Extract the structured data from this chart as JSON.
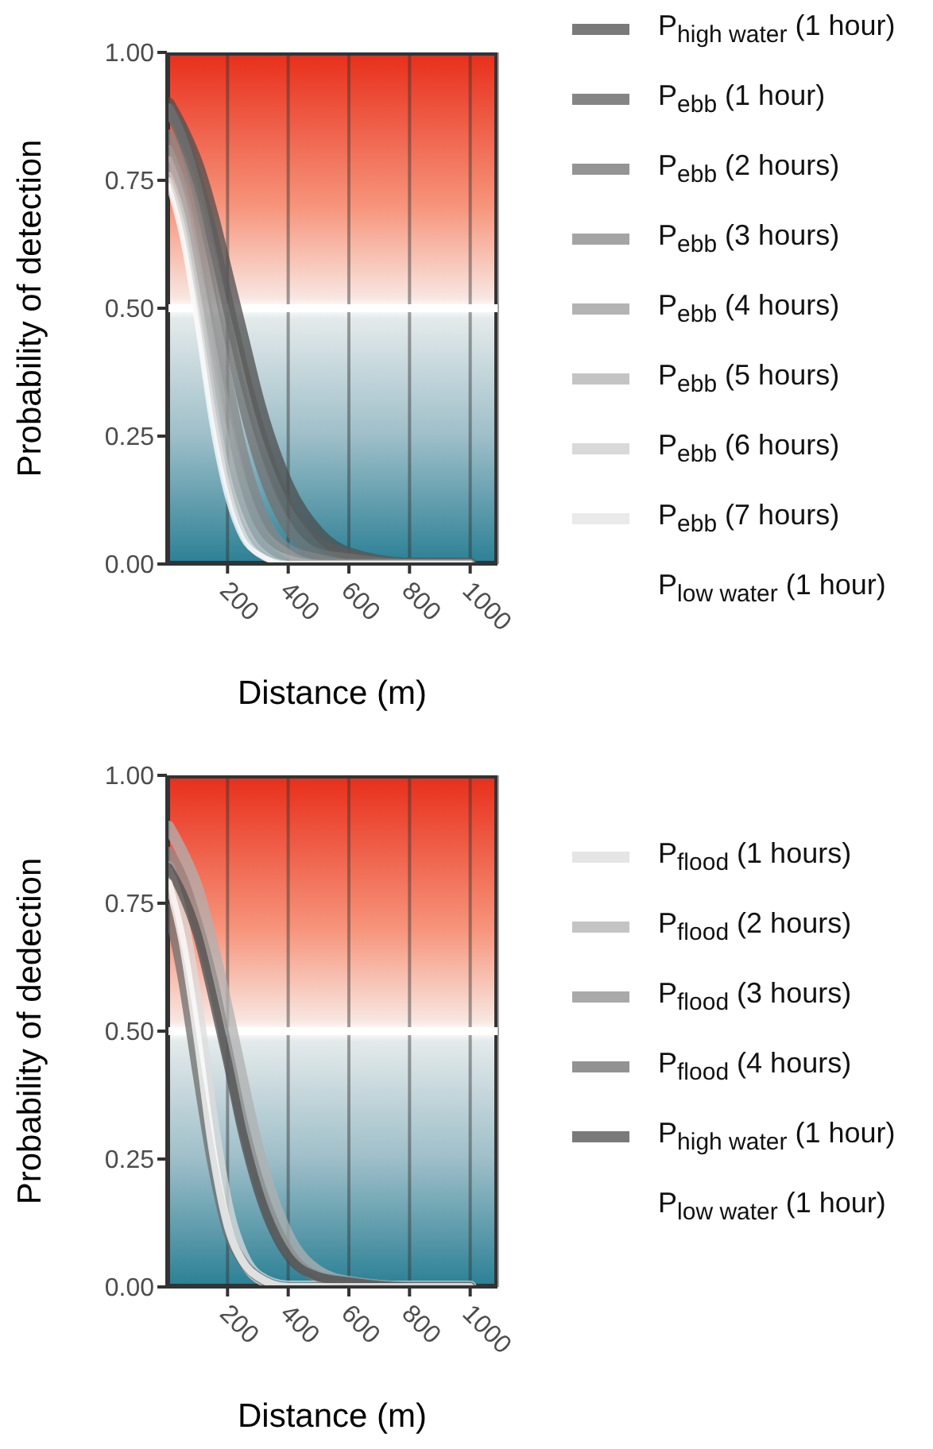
{
  "chart_data": [
    {
      "type": "line",
      "xlabel": "Distance (m)",
      "ylabel": "Probability of detection",
      "x": [
        5,
        50,
        100,
        150,
        200,
        250,
        300,
        400,
        500,
        600,
        800,
        1000
      ],
      "xlim": [
        0,
        1090
      ],
      "xticks": [
        200,
        400,
        600,
        800,
        1000
      ],
      "ylim": [
        0,
        1
      ],
      "yticks": [
        {
          "value": 0,
          "label": "0.00"
        },
        {
          "value": 0.25,
          "label": "0.25"
        },
        {
          "value": 0.5,
          "label": "0.50"
        },
        {
          "value": 0.75,
          "label": "0.75"
        },
        {
          "value": 1,
          "label": "1.00"
        }
      ],
      "grid": "x",
      "legend": "right",
      "ref_lines": [
        {
          "axis": "y",
          "value": 0.5,
          "color": "#ffffff"
        }
      ],
      "series": [
        {
          "name": "P$_{high water}$ (1 hour)",
          "color": "#4d4d4d",
          "values": [
            0.9,
            0.85,
            0.78,
            0.68,
            0.56,
            0.44,
            0.32,
            0.15,
            0.06,
            0.02,
            0.0,
            0.0
          ]
        },
        {
          "name": "P$_{ebb}$ (1 hour)",
          "color": "#5c5c5c",
          "values": [
            0.89,
            0.84,
            0.75,
            0.64,
            0.51,
            0.38,
            0.27,
            0.11,
            0.04,
            0.02,
            0.0,
            0.0
          ]
        },
        {
          "name": "P$_{ebb}$ (2 hours)",
          "color": "#707070",
          "values": [
            0.89,
            0.83,
            0.73,
            0.6,
            0.46,
            0.32,
            0.21,
            0.07,
            0.02,
            0.01,
            0.0,
            0.0
          ]
        },
        {
          "name": "P$_{ebb}$ (3 hours)",
          "color": "#858585",
          "values": [
            0.84,
            0.78,
            0.68,
            0.52,
            0.36,
            0.22,
            0.12,
            0.03,
            0.01,
            0.0,
            0.0,
            0.0
          ]
        },
        {
          "name": "P$_{ebb}$ (4 hours)",
          "color": "#999999",
          "values": [
            0.81,
            0.74,
            0.61,
            0.45,
            0.29,
            0.16,
            0.08,
            0.02,
            0.0,
            0.0,
            0.0,
            0.0
          ]
        },
        {
          "name": "P$_{ebb}$ (5 hours)",
          "color": "#b0b0b0",
          "values": [
            0.79,
            0.71,
            0.56,
            0.39,
            0.22,
            0.11,
            0.05,
            0.01,
            0.0,
            0.0,
            0.0,
            0.0
          ]
        },
        {
          "name": "P$_{ebb}$ (6 hours)",
          "color": "#cccccc",
          "values": [
            0.76,
            0.68,
            0.52,
            0.33,
            0.17,
            0.08,
            0.03,
            0.0,
            0.0,
            0.0,
            0.0,
            0.0
          ]
        },
        {
          "name": "P$_{ebb}$ (7 hours)",
          "color": "#e3e3e3",
          "values": [
            0.75,
            0.66,
            0.49,
            0.3,
            0.15,
            0.06,
            0.02,
            0.0,
            0.0,
            0.0,
            0.0,
            0.0
          ]
        },
        {
          "name": "P$_{low water}$ (1 hour)",
          "color": "#ffffff",
          "values": [
            0.74,
            0.64,
            0.47,
            0.27,
            0.13,
            0.05,
            0.02,
            0.0,
            0.0,
            0.0,
            0.0,
            0.0
          ]
        }
      ]
    },
    {
      "type": "line",
      "xlabel": "Distance (m)",
      "ylabel": "Probability of dedection",
      "x": [
        5,
        50,
        100,
        150,
        200,
        250,
        300,
        400,
        500,
        600,
        800,
        1000
      ],
      "xlim": [
        0,
        1090
      ],
      "xticks": [
        200,
        400,
        600,
        800,
        1000
      ],
      "ylim": [
        0,
        1
      ],
      "yticks": [
        {
          "value": 0,
          "label": "0.00"
        },
        {
          "value": 0.25,
          "label": "0.25"
        },
        {
          "value": 0.5,
          "label": "0.50"
        },
        {
          "value": 0.75,
          "label": "0.75"
        },
        {
          "value": 1,
          "label": "1.00"
        }
      ],
      "grid": "x",
      "legend": "right",
      "ref_lines": [
        {
          "axis": "y",
          "value": 0.5,
          "color": "#ffffff"
        }
      ],
      "series": [
        {
          "name": "P$_{flood}$ (1 hours)",
          "color": "#dcdcdc",
          "values": [
            0.82,
            0.72,
            0.54,
            0.32,
            0.15,
            0.06,
            0.02,
            0.0,
            0.0,
            0.0,
            0.0,
            0.0
          ]
        },
        {
          "name": "P$_{flood}$ (2 hours)",
          "color": "#b0b0b0",
          "values": [
            0.9,
            0.85,
            0.78,
            0.67,
            0.54,
            0.4,
            0.27,
            0.1,
            0.03,
            0.01,
            0.0,
            0.0
          ]
        },
        {
          "name": "P$_{flood}$ (3 hours)",
          "color": "#8c8c8c",
          "values": [
            0.85,
            0.8,
            0.71,
            0.6,
            0.46,
            0.32,
            0.21,
            0.07,
            0.02,
            0.01,
            0.0,
            0.0
          ]
        },
        {
          "name": "P$_{flood}$ (4 hours)",
          "color": "#6e6e6e",
          "values": [
            0.74,
            0.61,
            0.42,
            0.24,
            0.11,
            0.05,
            0.02,
            0.0,
            0.0,
            0.0,
            0.0,
            0.0
          ]
        },
        {
          "name": "P$_{high water}$ (1 hour)",
          "color": "#4d4d4d",
          "values": [
            0.82,
            0.77,
            0.69,
            0.57,
            0.44,
            0.3,
            0.19,
            0.06,
            0.02,
            0.01,
            0.0,
            0.0
          ]
        },
        {
          "name": "P$_{low water}$ (1 hour)",
          "color": "#ffffff",
          "values": [
            0.79,
            0.68,
            0.49,
            0.27,
            0.12,
            0.05,
            0.02,
            0.0,
            0.0,
            0.0,
            0.0,
            0.0
          ]
        }
      ]
    }
  ]
}
